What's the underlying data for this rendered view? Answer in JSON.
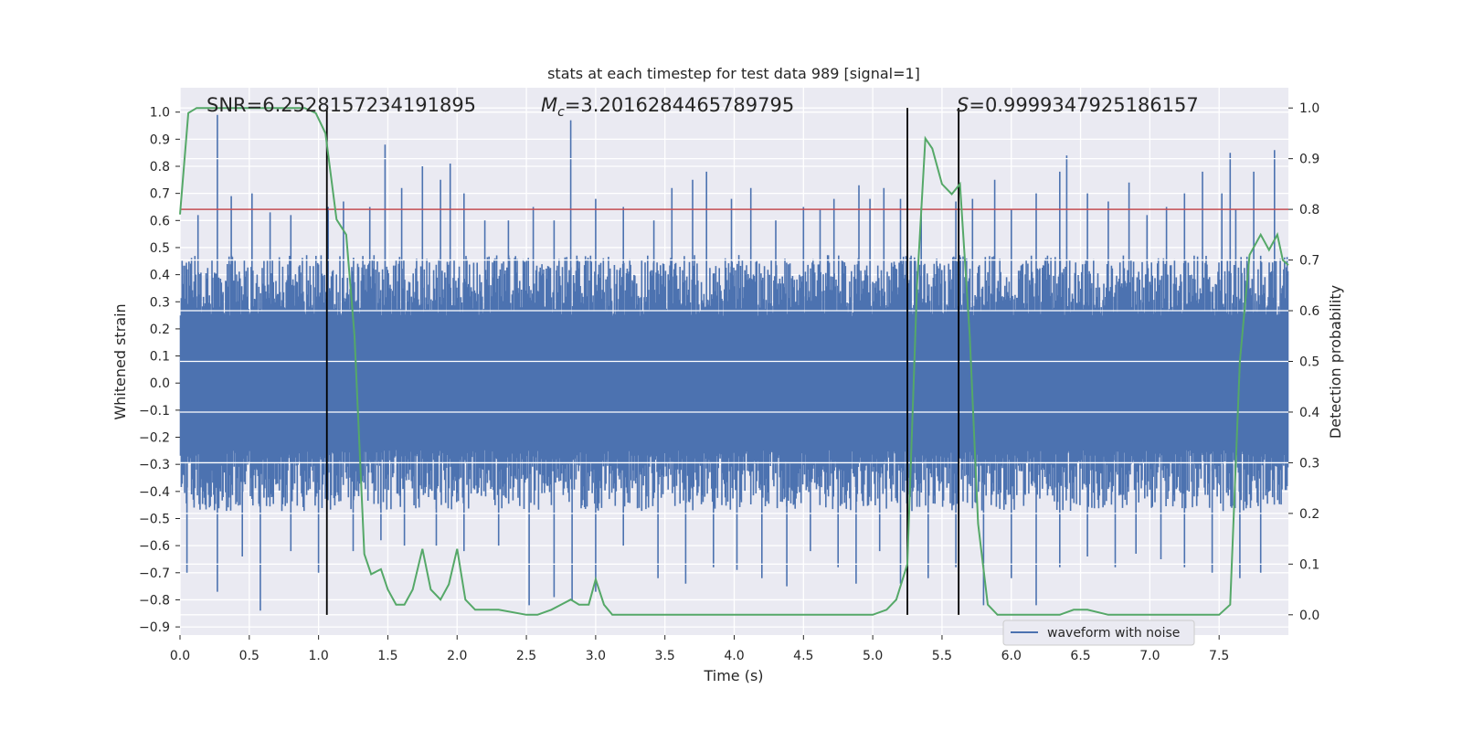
{
  "chart_data": {
    "type": "line",
    "title": "stats at each timestep for test data 989 [signal=1]",
    "xlabel": "Time (s)",
    "ylabel_left": "Whitened strain",
    "ylabel_right": "Detection probability",
    "xlim": [
      0.0,
      8.0
    ],
    "ylim_left": [
      -0.93,
      1.09
    ],
    "ylim_right": [
      -0.04,
      1.04
    ],
    "x_ticks": [
      "0.0",
      "0.5",
      "1.0",
      "1.5",
      "2.0",
      "2.5",
      "3.0",
      "3.5",
      "4.0",
      "4.5",
      "5.0",
      "5.5",
      "6.0",
      "6.5",
      "7.0",
      "7.5"
    ],
    "y_ticks_left": [
      "1.0",
      "0.9",
      "0.8",
      "0.7",
      "0.6",
      "0.5",
      "0.4",
      "0.3",
      "0.2",
      "0.1",
      "0.0",
      "−0.1",
      "−0.2",
      "−0.3",
      "−0.4",
      "−0.5",
      "−0.6",
      "−0.7",
      "−0.8",
      "−0.9"
    ],
    "y_ticks_right": [
      "1.0",
      "0.9",
      "0.8",
      "0.7",
      "0.6",
      "0.5",
      "0.4",
      "0.3",
      "0.2",
      "0.1",
      "0.0"
    ],
    "grid": true,
    "legend_position": "lower-right",
    "series": [
      {
        "name": "waveform with noise",
        "axis": "left",
        "color": "#4c72b0",
        "noise_band_upper": 0.45,
        "noise_band_lower": -0.45,
        "peaks_upper": [
          [
            0.13,
            0.62
          ],
          [
            0.27,
            0.99
          ],
          [
            0.37,
            0.69
          ],
          [
            0.52,
            0.7
          ],
          [
            0.65,
            0.63
          ],
          [
            0.8,
            0.62
          ],
          [
            1.07,
            0.65
          ],
          [
            1.18,
            0.67
          ],
          [
            1.37,
            0.65
          ],
          [
            1.48,
            0.88
          ],
          [
            1.6,
            0.72
          ],
          [
            1.75,
            0.8
          ],
          [
            1.88,
            0.75
          ],
          [
            1.95,
            0.81
          ],
          [
            2.05,
            0.7
          ],
          [
            2.2,
            0.6
          ],
          [
            2.37,
            0.6
          ],
          [
            2.55,
            0.65
          ],
          [
            2.7,
            0.6
          ],
          [
            2.82,
            0.97
          ],
          [
            3.0,
            0.68
          ],
          [
            3.2,
            0.65
          ],
          [
            3.42,
            0.6
          ],
          [
            3.55,
            0.72
          ],
          [
            3.7,
            0.75
          ],
          [
            3.8,
            0.78
          ],
          [
            3.98,
            0.68
          ],
          [
            4.12,
            0.72
          ],
          [
            4.3,
            0.6
          ],
          [
            4.5,
            0.65
          ],
          [
            4.62,
            0.64
          ],
          [
            4.72,
            0.68
          ],
          [
            4.9,
            0.73
          ],
          [
            4.98,
            0.68
          ],
          [
            5.08,
            0.72
          ],
          [
            5.2,
            0.68
          ],
          [
            5.35,
            0.65
          ],
          [
            5.6,
            0.67
          ],
          [
            5.72,
            0.68
          ],
          [
            5.88,
            0.75
          ],
          [
            6.0,
            0.64
          ],
          [
            6.18,
            0.7
          ],
          [
            6.35,
            0.78
          ],
          [
            6.4,
            0.84
          ],
          [
            6.55,
            0.7
          ],
          [
            6.7,
            0.67
          ],
          [
            6.85,
            0.74
          ],
          [
            6.98,
            0.62
          ],
          [
            7.12,
            0.65
          ],
          [
            7.25,
            0.7
          ],
          [
            7.38,
            0.78
          ],
          [
            7.52,
            0.7
          ],
          [
            7.58,
            0.85
          ],
          [
            7.62,
            0.64
          ],
          [
            7.75,
            0.78
          ],
          [
            7.9,
            0.86
          ]
        ],
        "peaks_lower": [
          [
            0.05,
            -0.7
          ],
          [
            0.27,
            -0.77
          ],
          [
            0.45,
            -0.64
          ],
          [
            0.58,
            -0.84
          ],
          [
            0.8,
            -0.62
          ],
          [
            1.0,
            -0.7
          ],
          [
            1.25,
            -0.62
          ],
          [
            1.45,
            -0.58
          ],
          [
            1.62,
            -0.6
          ],
          [
            1.85,
            -0.6
          ],
          [
            2.05,
            -0.62
          ],
          [
            2.3,
            -0.6
          ],
          [
            2.52,
            -0.82
          ],
          [
            2.7,
            -0.79
          ],
          [
            2.83,
            -0.8
          ],
          [
            3.0,
            -0.77
          ],
          [
            3.2,
            -0.6
          ],
          [
            3.45,
            -0.72
          ],
          [
            3.65,
            -0.74
          ],
          [
            3.85,
            -0.68
          ],
          [
            4.02,
            -0.69
          ],
          [
            4.2,
            -0.72
          ],
          [
            4.38,
            -0.75
          ],
          [
            4.55,
            -0.62
          ],
          [
            4.75,
            -0.68
          ],
          [
            4.88,
            -0.74
          ],
          [
            5.05,
            -0.62
          ],
          [
            5.2,
            -0.74
          ],
          [
            5.4,
            -0.72
          ],
          [
            5.6,
            -0.68
          ],
          [
            5.8,
            -0.82
          ],
          [
            6.0,
            -0.72
          ],
          [
            6.18,
            -0.82
          ],
          [
            6.35,
            -0.68
          ],
          [
            6.55,
            -0.64
          ],
          [
            6.75,
            -0.68
          ],
          [
            6.9,
            -0.63
          ],
          [
            7.08,
            -0.65
          ],
          [
            7.25,
            -0.68
          ],
          [
            7.45,
            -0.7
          ],
          [
            7.65,
            -0.72
          ],
          [
            7.8,
            -0.7
          ]
        ]
      },
      {
        "name": "",
        "axis": "right",
        "color": "#55a868",
        "x": [
          0.0,
          0.06,
          0.12,
          0.3,
          0.5,
          0.7,
          0.9,
          0.98,
          1.05,
          1.13,
          1.2,
          1.26,
          1.33,
          1.38,
          1.45,
          1.5,
          1.56,
          1.62,
          1.68,
          1.75,
          1.81,
          1.88,
          1.94,
          2.0,
          2.06,
          2.13,
          2.3,
          2.5,
          2.58,
          2.68,
          2.75,
          2.82,
          2.88,
          2.95,
          3.0,
          3.06,
          3.12,
          3.2,
          3.5,
          3.55,
          3.7,
          4.0,
          4.5,
          5.0,
          5.1,
          5.17,
          5.25,
          5.32,
          5.38,
          5.43,
          5.5,
          5.57,
          5.63,
          5.7,
          5.76,
          5.83,
          5.9,
          5.97,
          6.05,
          6.2,
          6.35,
          6.45,
          6.5,
          6.55,
          6.7,
          7.0,
          7.2,
          7.4,
          7.5,
          7.58,
          7.65,
          7.72,
          7.8,
          7.86,
          7.92,
          7.96,
          8.0
        ],
        "y": [
          0.79,
          0.99,
          1.0,
          1.0,
          1.0,
          1.0,
          1.0,
          0.99,
          0.95,
          0.78,
          0.75,
          0.55,
          0.12,
          0.08,
          0.09,
          0.05,
          0.02,
          0.02,
          0.05,
          0.13,
          0.05,
          0.03,
          0.06,
          0.13,
          0.03,
          0.01,
          0.01,
          0.0,
          0.0,
          0.01,
          0.02,
          0.03,
          0.02,
          0.02,
          0.07,
          0.02,
          0.0,
          0.0,
          0.0,
          0.0,
          0.0,
          0.0,
          0.0,
          0.0,
          0.01,
          0.03,
          0.1,
          0.65,
          0.94,
          0.92,
          0.85,
          0.83,
          0.85,
          0.55,
          0.18,
          0.02,
          0.0,
          0.0,
          0.0,
          0.0,
          0.0,
          0.01,
          0.01,
          0.01,
          0.0,
          0.0,
          0.0,
          0.0,
          0.0,
          0.02,
          0.5,
          0.71,
          0.75,
          0.72,
          0.75,
          0.7,
          0.69
        ]
      }
    ],
    "threshold_line": {
      "axis": "right",
      "value": 0.8,
      "color": "#c44e52"
    },
    "vertical_lines": [
      1.06,
      5.25,
      5.62
    ],
    "annotations": {
      "snr": "SNR=6.2528157234191895",
      "mc_symbol": "M",
      "mc_sub": "c",
      "mc_value": "=3.2016284465789795",
      "s_symbol": "S",
      "s_value": "=0.9999347925186157"
    }
  }
}
